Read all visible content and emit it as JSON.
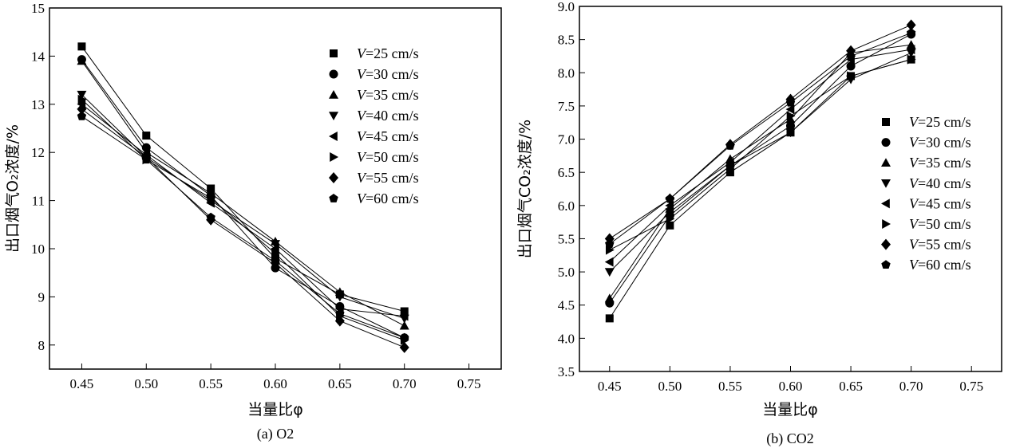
{
  "chart_data": [
    {
      "type": "line",
      "caption": "(a) O2",
      "xlabel": "当量比φ",
      "ylabel": "出口烟气O₂浓度/%",
      "xlim": [
        0.425,
        0.775
      ],
      "ylim": [
        7.5,
        15
      ],
      "xticks": [
        0.45,
        0.5,
        0.55,
        0.6,
        0.65,
        0.7,
        0.75
      ],
      "yticks": [
        8,
        9,
        10,
        11,
        12,
        13,
        14,
        15
      ],
      "legend_position": "top-right",
      "x": [
        0.45,
        0.5,
        0.55,
        0.6,
        0.65,
        0.7
      ],
      "series": [
        {
          "name": "V=25 cm/s",
          "marker": "square",
          "values": [
            14.2,
            12.35,
            11.25,
            9.8,
            9.05,
            8.7
          ]
        },
        {
          "name": "V=30 cm/s",
          "marker": "circle",
          "values": [
            13.93,
            12.1,
            11.1,
            9.6,
            8.8,
            8.15
          ]
        },
        {
          "name": "V=35 cm/s",
          "marker": "triangle-up",
          "values": [
            13.9,
            12.0,
            11.15,
            10.15,
            9.1,
            8.4
          ]
        },
        {
          "name": "V=40 cm/s",
          "marker": "triangle-down",
          "values": [
            13.2,
            11.9,
            11.0,
            10.1,
            9.0,
            8.55
          ]
        },
        {
          "name": "V=45 cm/s",
          "marker": "triangle-left",
          "values": [
            13.0,
            11.95,
            10.95,
            10.0,
            8.75,
            8.6
          ]
        },
        {
          "name": "V=50 cm/s",
          "marker": "triangle-right",
          "values": [
            13.1,
            11.85,
            11.05,
            9.9,
            8.6,
            8.1
          ]
        },
        {
          "name": "V=55 cm/s",
          "marker": "diamond",
          "values": [
            12.9,
            11.9,
            10.6,
            9.7,
            8.5,
            7.95
          ]
        },
        {
          "name": "V=60 cm/s",
          "marker": "pentagon",
          "values": [
            12.75,
            11.85,
            10.65,
            9.75,
            8.65,
            8.15
          ]
        }
      ]
    },
    {
      "type": "line",
      "caption": "(b) CO2",
      "xlabel": "当量比φ",
      "ylabel": "出口烟气CO₂浓度/%",
      "xlim": [
        0.425,
        0.775
      ],
      "ylim": [
        3.5,
        9.0
      ],
      "xticks": [
        0.45,
        0.5,
        0.55,
        0.6,
        0.65,
        0.7,
        0.75
      ],
      "yticks": [
        3.5,
        4.0,
        4.5,
        5.0,
        5.5,
        6.0,
        6.5,
        7.0,
        7.5,
        8.0,
        8.5,
        9.0
      ],
      "legend_position": "center-right",
      "x": [
        0.45,
        0.5,
        0.55,
        0.6,
        0.65,
        0.7
      ],
      "series": [
        {
          "name": "V=25 cm/s",
          "marker": "square",
          "values": [
            4.3,
            5.7,
            6.5,
            7.1,
            7.95,
            8.2
          ]
        },
        {
          "name": "V=30 cm/s",
          "marker": "circle",
          "values": [
            4.53,
            5.85,
            6.6,
            7.2,
            8.1,
            8.58
          ]
        },
        {
          "name": "V=35 cm/s",
          "marker": "triangle-up",
          "values": [
            4.6,
            5.95,
            6.7,
            7.3,
            8.3,
            8.42
          ]
        },
        {
          "name": "V=40 cm/s",
          "marker": "triangle-down",
          "values": [
            5.0,
            5.9,
            6.6,
            7.1,
            7.9,
            8.3
          ]
        },
        {
          "name": "V=45 cm/s",
          "marker": "triangle-left",
          "values": [
            5.15,
            6.0,
            6.65,
            7.45,
            8.2,
            8.35
          ]
        },
        {
          "name": "V=50 cm/s",
          "marker": "triangle-right",
          "values": [
            5.33,
            5.8,
            6.55,
            7.35,
            7.95,
            8.2
          ]
        },
        {
          "name": "V=55 cm/s",
          "marker": "diamond",
          "values": [
            5.5,
            6.1,
            6.92,
            7.6,
            8.33,
            8.72
          ]
        },
        {
          "name": "V=60 cm/s",
          "marker": "pentagon",
          "values": [
            5.42,
            6.1,
            6.9,
            7.55,
            8.25,
            8.6
          ]
        }
      ]
    }
  ]
}
